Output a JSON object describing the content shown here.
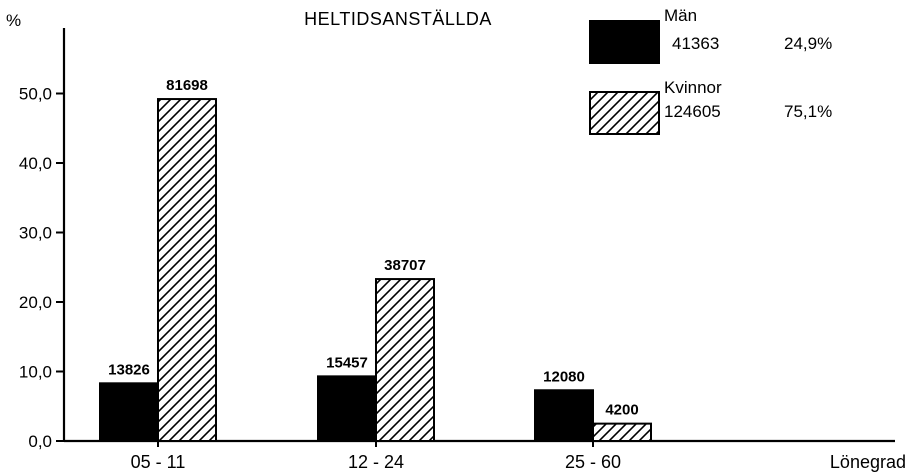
{
  "chart_data": {
    "type": "bar",
    "title": "HELTIDSANSTÄLLDA",
    "ylabel": "%",
    "xlabel": "Lönegrad",
    "ylim": [
      0,
      55
    ],
    "yticks": [
      "0,0",
      "10,0",
      "20,0",
      "30,0",
      "40,0",
      "50,0"
    ],
    "categories": [
      "05 - 11",
      "12 - 24",
      "25 - 60"
    ],
    "series": [
      {
        "name": "Män",
        "total": "41363",
        "share": "24,9%",
        "fill": "solid",
        "color": "#000000",
        "values": [
          8.3,
          9.3,
          7.3
        ],
        "labels": [
          "13826",
          "15457",
          "12080"
        ]
      },
      {
        "name": "Kvinnor",
        "total": "124605",
        "share": "75,1%",
        "fill": "hatched",
        "color": "#000000",
        "values": [
          49.2,
          23.3,
          2.5
        ],
        "labels": [
          "81698",
          "38707",
          "4200"
        ]
      }
    ],
    "legend_position": "top-right",
    "grid": false
  }
}
